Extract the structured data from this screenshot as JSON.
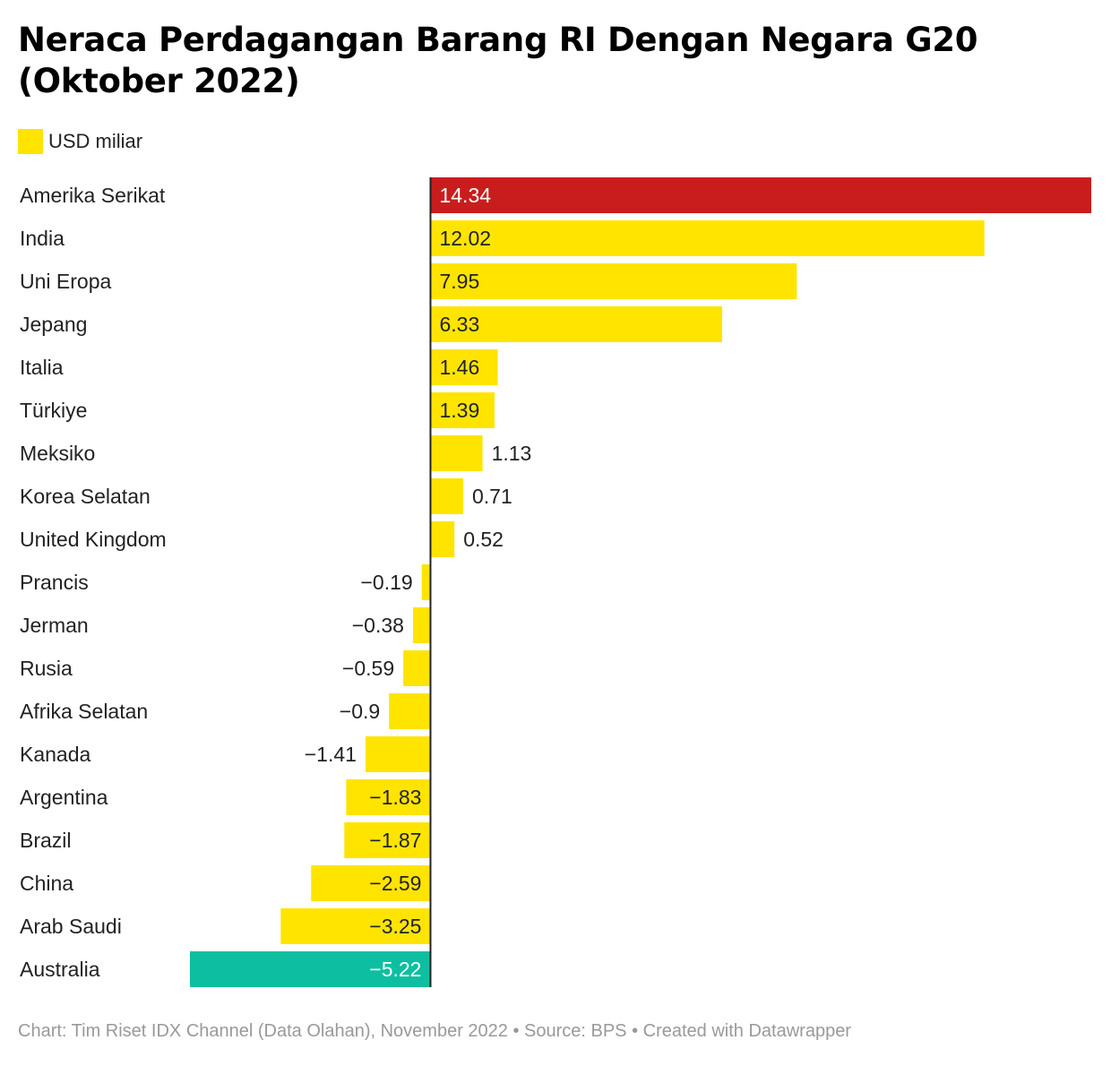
{
  "title": "Neraca Perdagangan Barang RI Dengan Negara G20 (Oktober 2022)",
  "legend": {
    "label": "USD miliar",
    "color": "#FFE400"
  },
  "footer": "Chart: Tim Riset IDX Channel (Data Olahan), November 2022 • Source: BPS • Created with Datawrapper",
  "colors": {
    "default": "#FFE400",
    "highlight_max": "#C91D1D",
    "highlight_min": "#0DBFA0",
    "label_dark": "#222222",
    "label_light": "#ffffff"
  },
  "chart_data": {
    "type": "bar",
    "orientation": "horizontal",
    "unit": "USD miliar",
    "categories": [
      "Amerika Serikat",
      "India",
      "Uni Eropa",
      "Jepang",
      "Italia",
      "Türkiye",
      "Meksiko",
      "Korea Selatan",
      "United Kingdom",
      "Prancis",
      "Jerman",
      "Rusia",
      "Afrika Selatan",
      "Kanada",
      "Argentina",
      "Brazil",
      "China",
      "Arab Saudi",
      "Australia"
    ],
    "values": [
      14.34,
      12.02,
      7.95,
      6.33,
      1.46,
      1.39,
      1.13,
      0.71,
      0.52,
      -0.19,
      -0.38,
      -0.59,
      -0.9,
      -1.41,
      -1.83,
      -1.87,
      -2.59,
      -3.25,
      -5.22
    ],
    "value_labels": [
      "14.34",
      "12.02",
      "7.95",
      "6.33",
      "1.46",
      "1.39",
      "1.13",
      "0.71",
      "0.52",
      "−0.19",
      "−0.38",
      "−0.59",
      "−0.9",
      "−1.41",
      "−1.83",
      "−1.87",
      "−2.59",
      "−3.25",
      "−5.22"
    ],
    "xlim": [
      -5.22,
      14.34
    ],
    "grid": false,
    "legend_position": "top-left"
  }
}
